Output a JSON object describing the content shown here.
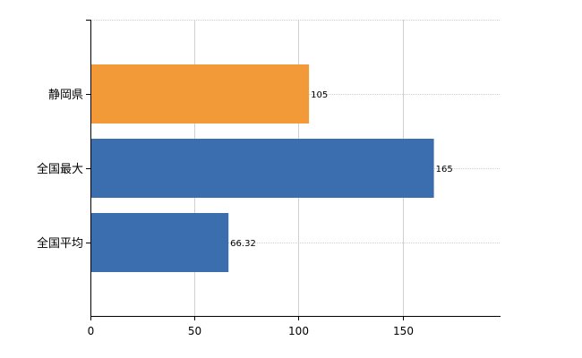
{
  "chart_data": {
    "type": "bar",
    "orientation": "horizontal",
    "title": "",
    "xlabel": "",
    "ylabel": "",
    "categories": [
      "静岡県",
      "全国最大",
      "全国平均"
    ],
    "values": [
      105,
      165,
      66.32
    ],
    "value_labels": [
      "105",
      "165",
      "66.32"
    ],
    "colors": [
      "#F39A38",
      "#3A6EAE",
      "#3A6EAE"
    ],
    "xlim": [
      0,
      197
    ],
    "xticks": [
      0,
      50,
      100,
      150
    ],
    "grid": true,
    "legend": "none"
  }
}
